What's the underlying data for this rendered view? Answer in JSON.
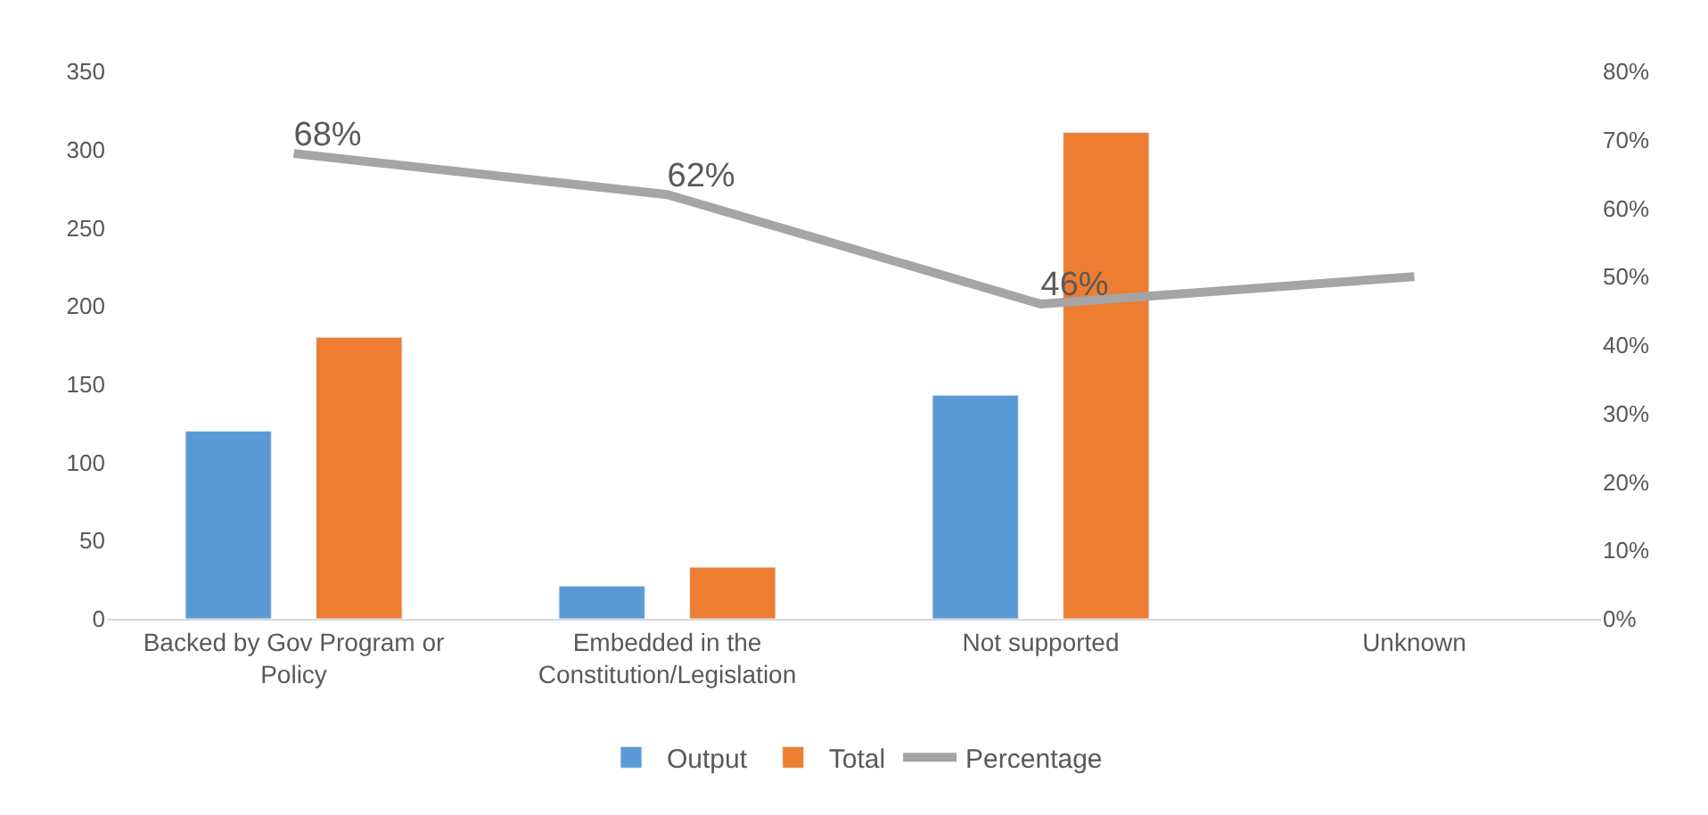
{
  "chart_data": {
    "type": "bar",
    "categories": [
      "Backed by Gov Program or Policy",
      "Embedded in the Constitution/Legislation",
      "Not supported",
      "Unknown"
    ],
    "series": [
      {
        "name": "Output",
        "color": "#5b9bd5",
        "values": [
          120,
          21,
          143,
          null
        ]
      },
      {
        "name": "Total",
        "color": "#ed7d31",
        "values": [
          180,
          33,
          311,
          null
        ]
      },
      {
        "name": "Percentage",
        "color": "#a5a5a5",
        "type": "line",
        "axis": "y2",
        "marker": "none",
        "values": [
          68,
          62,
          46,
          50
        ],
        "value_labels": [
          "68%",
          "62%",
          "46%",
          null
        ]
      }
    ],
    "ylim": [
      0,
      350
    ],
    "yticks": [
      0,
      50,
      100,
      150,
      200,
      250,
      300,
      350
    ],
    "y2lim": [
      0,
      80
    ],
    "y2ticks": [
      {
        "value": 0,
        "label": "0%"
      },
      {
        "value": 10,
        "label": "10%"
      },
      {
        "value": 20,
        "label": "20%"
      },
      {
        "value": 30,
        "label": "30%"
      },
      {
        "value": 40,
        "label": "40%"
      },
      {
        "value": 50,
        "label": "50%"
      },
      {
        "value": 60,
        "label": "60%"
      },
      {
        "value": 70,
        "label": "70%"
      },
      {
        "value": 80,
        "label": "80%"
      }
    ],
    "grid": false,
    "legend": "bottom"
  }
}
